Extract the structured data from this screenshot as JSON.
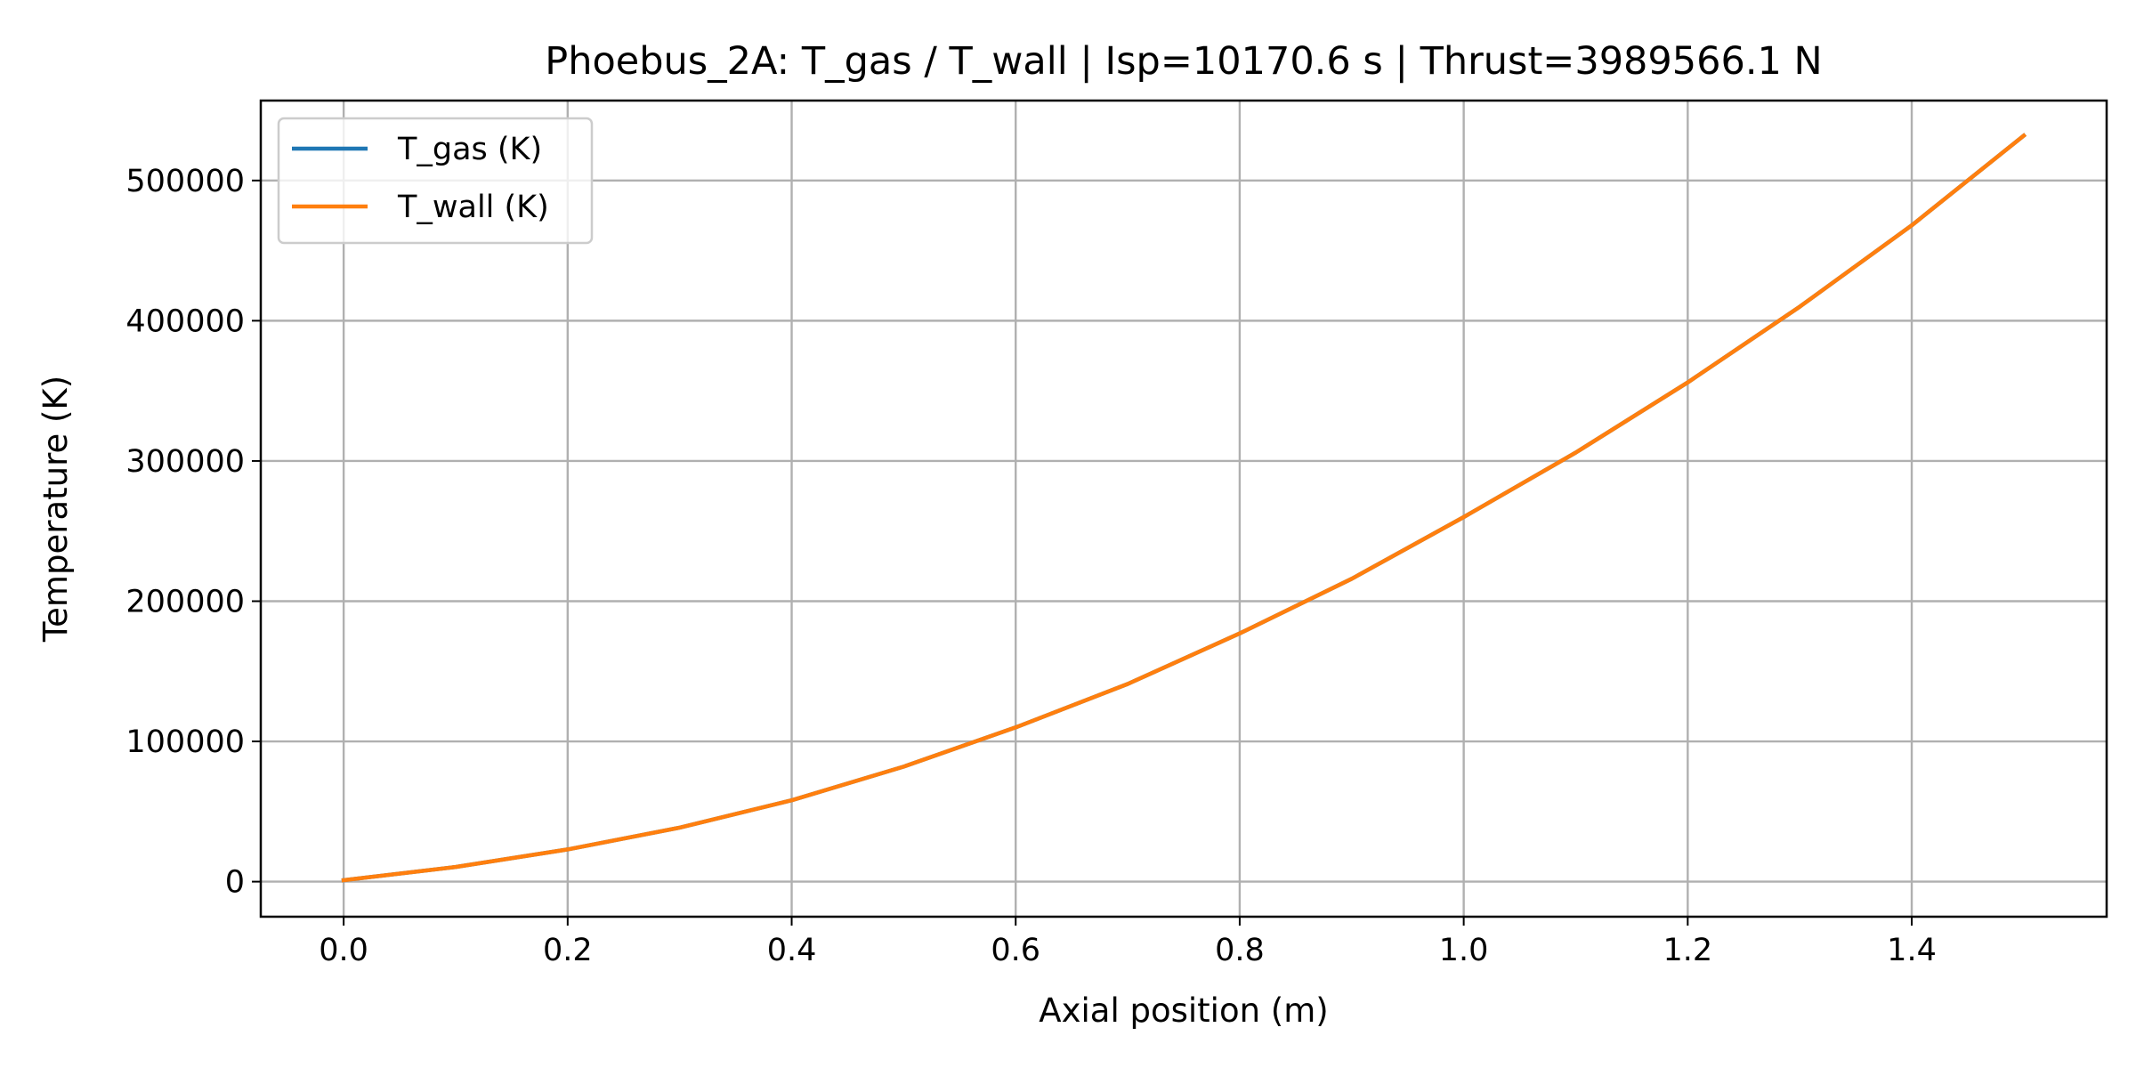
{
  "chart_data": {
    "type": "line",
    "title": "Phoebus_2A: T_gas / T_wall | Isp=10170.6 s | Thrust=3989566.1 N",
    "xlabel": "Axial position (m)",
    "ylabel": "Temperature (K)",
    "xlim": [
      -0.074,
      1.574
    ],
    "ylim": [
      -25000,
      557000
    ],
    "xticks": [
      0.0,
      0.2,
      0.4,
      0.6,
      0.8,
      1.0,
      1.2,
      1.4
    ],
    "xtick_labels": [
      "0.0",
      "0.2",
      "0.4",
      "0.6",
      "0.8",
      "1.0",
      "1.2",
      "1.4"
    ],
    "yticks": [
      0,
      100000,
      200000,
      300000,
      400000,
      500000
    ],
    "ytick_labels": [
      "0",
      "100000",
      "200000",
      "300000",
      "400000",
      "500000"
    ],
    "grid": true,
    "legend_position": "top-left",
    "series": [
      {
        "name": "T_gas (K)",
        "color": "#1f77b4",
        "x": [
          0.0,
          0.1,
          0.2,
          0.3,
          0.4,
          0.5,
          0.6,
          0.7,
          0.8,
          0.9,
          1.0,
          1.1,
          1.2,
          1.3,
          1.4,
          1.5
        ],
        "y": [
          1000,
          10500,
          23000,
          38500,
          58000,
          82000,
          110000,
          141000,
          177000,
          216000,
          260000,
          306000,
          356000,
          410000,
          468000,
          532000
        ]
      },
      {
        "name": "T_wall (K)",
        "color": "#ff7f0e",
        "x": [
          0.0,
          0.1,
          0.2,
          0.3,
          0.4,
          0.5,
          0.6,
          0.7,
          0.8,
          0.9,
          1.0,
          1.1,
          1.2,
          1.3,
          1.4,
          1.5
        ],
        "y": [
          1000,
          10500,
          23000,
          38500,
          58000,
          82000,
          110000,
          141000,
          177000,
          216000,
          260000,
          306000,
          356000,
          410000,
          468000,
          532000
        ]
      }
    ]
  }
}
